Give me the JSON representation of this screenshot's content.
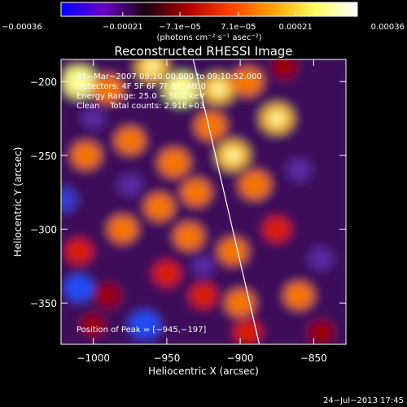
{
  "chart_data": {
    "type": "heatmap",
    "title": "Reconstructed RHESSI Image",
    "xlabel": "Heliocentric X (arcsec)",
    "ylabel": "Heliocentric Y (arcsec)",
    "xlim": [
      -1022,
      -828
    ],
    "ylim": [
      -378,
      -185
    ],
    "x_ticks": [
      -1000,
      -950,
      -900,
      -850
    ],
    "y_ticks": [
      -200,
      -250,
      -300,
      -350
    ],
    "x_tick_labels": [
      "−1000",
      "−950",
      "−900",
      "−850"
    ],
    "y_tick_labels": [
      "−200",
      "−250",
      "−300",
      "−350"
    ],
    "colorbar": {
      "range": [
        -0.00036,
        0.00036
      ],
      "ticks": [
        -0.00036,
        -0.00021,
        -7.1e-05,
        7.1e-05,
        0.00021,
        0.00036
      ],
      "tick_labels": [
        "−0.00036",
        "−0.00021",
        "−7.1e−05",
        "7.1e−05",
        "0.00021",
        "0.00036"
      ],
      "unit_label": "(photons cm⁻² s⁻¹ asec⁻²)",
      "colors": [
        "#0000ff",
        "#6a00c8",
        "#1a0010",
        "#b00000",
        "#ff4000",
        "#ffa000",
        "#ffff60",
        "#ffffff"
      ]
    },
    "annotations": [
      "31−Mar−2007 09:10:00.000 to 09:10:52.000",
      "Detectors: 4F 5F 6F 7F 8F, Att 0",
      "Energy Range: 25.0 − 50.0 keV",
      "Clean    Total counts: 2.91E+03"
    ],
    "peak_label": "Position of Peak = [−945,−197]",
    "limb_line": {
      "x": [
        -932,
        -887
      ],
      "y": [
        -185,
        -378
      ]
    },
    "blobs": [
      {
        "x": -1010,
        "y": -200,
        "v": 1.0
      },
      {
        "x": -990,
        "y": -205,
        "v": 0.8
      },
      {
        "x": -960,
        "y": -190,
        "v": 0.9
      },
      {
        "x": -940,
        "y": -205,
        "v": 1.0
      },
      {
        "x": -915,
        "y": -205,
        "v": 0.9
      },
      {
        "x": -895,
        "y": -200,
        "v": 0.8
      },
      {
        "x": -870,
        "y": -190,
        "v": 0.5
      },
      {
        "x": -875,
        "y": -225,
        "v": 0.9
      },
      {
        "x": -1005,
        "y": -250,
        "v": 0.7
      },
      {
        "x": -975,
        "y": -240,
        "v": 0.7
      },
      {
        "x": -945,
        "y": -255,
        "v": 0.8
      },
      {
        "x": -920,
        "y": -230,
        "v": 0.8
      },
      {
        "x": -905,
        "y": -250,
        "v": 0.9
      },
      {
        "x": -890,
        "y": -270,
        "v": 0.8
      },
      {
        "x": -930,
        "y": -275,
        "v": 0.7
      },
      {
        "x": -955,
        "y": -285,
        "v": 0.7
      },
      {
        "x": -980,
        "y": -300,
        "v": 0.7
      },
      {
        "x": -1010,
        "y": -315,
        "v": 0.6
      },
      {
        "x": -935,
        "y": -305,
        "v": 0.7
      },
      {
        "x": -905,
        "y": -315,
        "v": 0.7
      },
      {
        "x": -875,
        "y": -300,
        "v": 0.6
      },
      {
        "x": -950,
        "y": -330,
        "v": 0.6
      },
      {
        "x": -990,
        "y": -345,
        "v": 0.5
      },
      {
        "x": -925,
        "y": -345,
        "v": 0.6
      },
      {
        "x": -900,
        "y": -350,
        "v": 0.7
      },
      {
        "x": -895,
        "y": -370,
        "v": 0.6
      },
      {
        "x": -860,
        "y": -345,
        "v": 0.7
      },
      {
        "x": -845,
        "y": -370,
        "v": 0.5
      },
      {
        "x": -1000,
        "y": -365,
        "v": 0.4
      },
      {
        "x": -1020,
        "y": -280,
        "v": -0.5
      },
      {
        "x": -1010,
        "y": -340,
        "v": -0.7
      },
      {
        "x": -965,
        "y": -365,
        "v": -0.8
      },
      {
        "x": -975,
        "y": -270,
        "v": -0.4
      },
      {
        "x": -1000,
        "y": -225,
        "v": -0.3
      },
      {
        "x": -860,
        "y": -260,
        "v": -0.4
      },
      {
        "x": -845,
        "y": -320,
        "v": -0.4
      },
      {
        "x": -925,
        "y": -325,
        "v": -0.3
      }
    ]
  },
  "footer": {
    "timestamp": "24−Jul−2013 17:45"
  }
}
